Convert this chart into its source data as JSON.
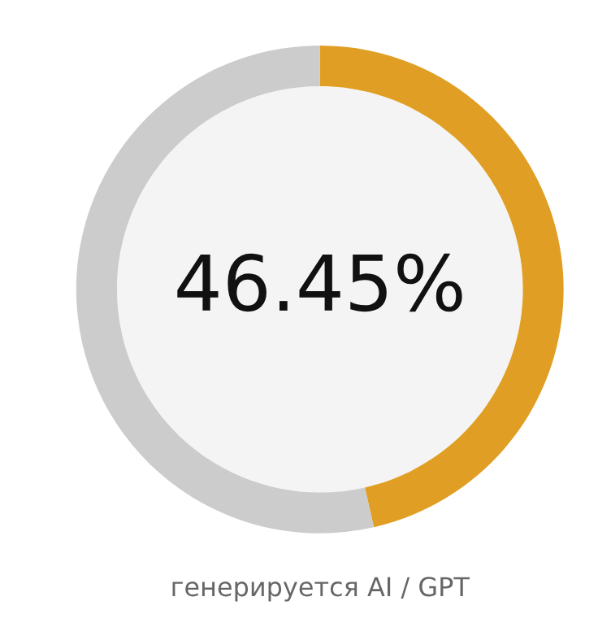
{
  "chart_data": {
    "type": "donut",
    "categories": [
      null,
      null
    ],
    "values": [
      46.45,
      53.55
    ],
    "colors": [
      "#e09f24",
      "#cccccc"
    ],
    "value_labels": [
      "46.45%",
      null
    ],
    "annotations": [
      "генерируется AI / GPT"
    ],
    "legend": false
  }
}
